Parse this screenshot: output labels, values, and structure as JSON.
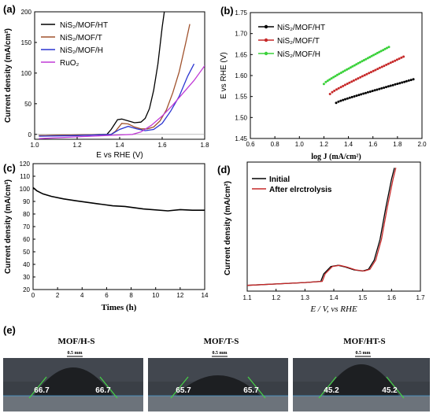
{
  "colors": {
    "black": "#000000",
    "brown": "#a0522d",
    "blue": "#2b35d1",
    "magenta": "#c03ad6",
    "red": "#c62828",
    "green": "#3ad13a",
    "photo_bg": "#3a3f46",
    "drop": "#1d1f22",
    "angle_line": "#46d246"
  },
  "panel_labels": {
    "a": "(a)",
    "b": "(b)",
    "c": "(c)",
    "d": "(d)",
    "e": "(e)"
  },
  "chart_data": [
    {
      "id": "a",
      "type": "line",
      "xlabel": "E vs RHE (V)",
      "ylabel": "Current density (mA/cm²)",
      "xlim": [
        1.0,
        1.8
      ],
      "ylim": [
        -8,
        200
      ],
      "xticks": [
        "1.0",
        "1.2",
        "1.4",
        "1.6",
        "1.8"
      ],
      "yticks": [
        "0",
        "50",
        "100",
        "150",
        "200"
      ],
      "series": [
        {
          "name": "NiS₂/MOF/HT",
          "color": "#000000",
          "x": [
            1.02,
            1.2,
            1.34,
            1.36,
            1.39,
            1.41,
            1.44,
            1.47,
            1.5,
            1.52,
            1.54,
            1.56,
            1.58,
            1.6,
            1.61
          ],
          "y": [
            -2,
            -1,
            0,
            8,
            24,
            25,
            22,
            19,
            20,
            26,
            42,
            72,
            115,
            175,
            200
          ]
        },
        {
          "name": "NiS₂/MOF/T",
          "color": "#a0522d",
          "x": [
            1.02,
            1.2,
            1.36,
            1.38,
            1.41,
            1.44,
            1.47,
            1.5,
            1.53,
            1.56,
            1.59,
            1.62,
            1.65,
            1.68,
            1.71,
            1.73
          ],
          "y": [
            -2,
            -1,
            0,
            5,
            18,
            17,
            12,
            9,
            9,
            12,
            22,
            40,
            68,
            102,
            148,
            180
          ]
        },
        {
          "name": "NiS₂/MOF/H",
          "color": "#2b35d1",
          "x": [
            1.02,
            1.2,
            1.36,
            1.4,
            1.44,
            1.48,
            1.52,
            1.56,
            1.6,
            1.64,
            1.68,
            1.72,
            1.75
          ],
          "y": [
            -3,
            -2,
            0,
            8,
            13,
            9,
            6,
            8,
            18,
            38,
            62,
            95,
            115
          ]
        },
        {
          "name": "RuO₂",
          "color": "#c03ad6",
          "x": [
            1.02,
            1.2,
            1.4,
            1.46,
            1.5,
            1.55,
            1.6,
            1.65,
            1.7,
            1.75,
            1.8
          ],
          "y": [
            -7,
            -4,
            -1,
            0,
            4,
            15,
            30,
            48,
            68,
            88,
            112
          ]
        }
      ]
    },
    {
      "id": "b",
      "type": "line",
      "xlabel": "log J (mA/cm²)",
      "ylabel": "E vs RHE (V)",
      "xlim": [
        0.6,
        2.0
      ],
      "ylim": [
        1.45,
        1.75
      ],
      "xticks": [
        "0.6",
        "0.8",
        "1.0",
        "1.2",
        "1.4",
        "1.6",
        "1.8",
        "2.0"
      ],
      "yticks": [
        "1.45",
        "1.50",
        "1.55",
        "1.60",
        "1.65",
        "1.70",
        "1.75"
      ],
      "series": [
        {
          "name": "NiS₂/MOF/HT",
          "color": "#000000",
          "x_range": [
            1.3,
            1.93
          ],
          "y_range": [
            1.535,
            1.591
          ]
        },
        {
          "name": "NiS₂/MOF/T",
          "color": "#c62828",
          "x_range": [
            1.25,
            1.85
          ],
          "y_range": [
            1.556,
            1.645
          ]
        },
        {
          "name": "NiS₂/MOF/H",
          "color": "#3ad13a",
          "x_range": [
            1.2,
            1.73
          ],
          "y_range": [
            1.58,
            1.668
          ]
        }
      ]
    },
    {
      "id": "c",
      "type": "line",
      "xlabel": "Times (h)",
      "ylabel": "Current density (mA/cm²)",
      "xlim": [
        0,
        14
      ],
      "ylim": [
        20,
        120
      ],
      "xticks": [
        "0",
        "2",
        "4",
        "6",
        "8",
        "10",
        "12",
        "14"
      ],
      "yticks": [
        "20",
        "30",
        "40",
        "50",
        "60",
        "70",
        "80",
        "90",
        "100",
        "110",
        "120"
      ],
      "series": [
        {
          "name": "",
          "color": "#000000",
          "x": [
            0,
            0.3,
            0.8,
            1.5,
            2.5,
            3.5,
            5,
            6.5,
            7.5,
            9,
            11,
            12,
            13,
            14
          ],
          "y": [
            101,
            98.5,
            96,
            94,
            92,
            90.5,
            88.5,
            86.5,
            86,
            84,
            82.5,
            83.5,
            83,
            83
          ]
        }
      ]
    },
    {
      "id": "d",
      "type": "line",
      "xlabel": "E / V, vs RHE",
      "ylabel": "Current density (mA/cm²)",
      "xlim": [
        1.1,
        1.7
      ],
      "xticks": [
        "1.1",
        "1.2",
        "1.3",
        "1.4",
        "1.5",
        "1.6",
        "1.7"
      ],
      "yticks": [],
      "series": [
        {
          "name": "Initial",
          "color": "#000000",
          "x": [
            1.1,
            1.3,
            1.355,
            1.365,
            1.39,
            1.415,
            1.44,
            1.47,
            1.5,
            1.52,
            1.54,
            1.56,
            1.58,
            1.6,
            1.61
          ],
          "y": [
            0,
            5,
            7,
            20,
            33,
            35,
            32,
            27,
            25,
            28,
            44,
            80,
            135,
            185,
            205
          ]
        },
        {
          "name": "After elrctrolysis",
          "color": "#c62828",
          "x": [
            1.1,
            1.3,
            1.36,
            1.37,
            1.395,
            1.42,
            1.445,
            1.475,
            1.505,
            1.525,
            1.545,
            1.565,
            1.585,
            1.605,
            1.615
          ],
          "y": [
            0,
            5,
            7,
            20,
            33,
            35,
            32,
            27,
            25,
            28,
            44,
            80,
            135,
            185,
            205
          ]
        }
      ]
    }
  ],
  "photos": [
    {
      "title": "MOF/H-S",
      "scale": "0.5 mm",
      "angle_left": "66.7",
      "angle_right": "66.7"
    },
    {
      "title": "MOF/T-S",
      "scale": "0.5 mm",
      "angle_left": "65.7",
      "angle_right": "65.7"
    },
    {
      "title": "MOF/HT-S",
      "scale": "0.5 mm",
      "angle_left": "45.2",
      "angle_right": "45.2"
    }
  ]
}
